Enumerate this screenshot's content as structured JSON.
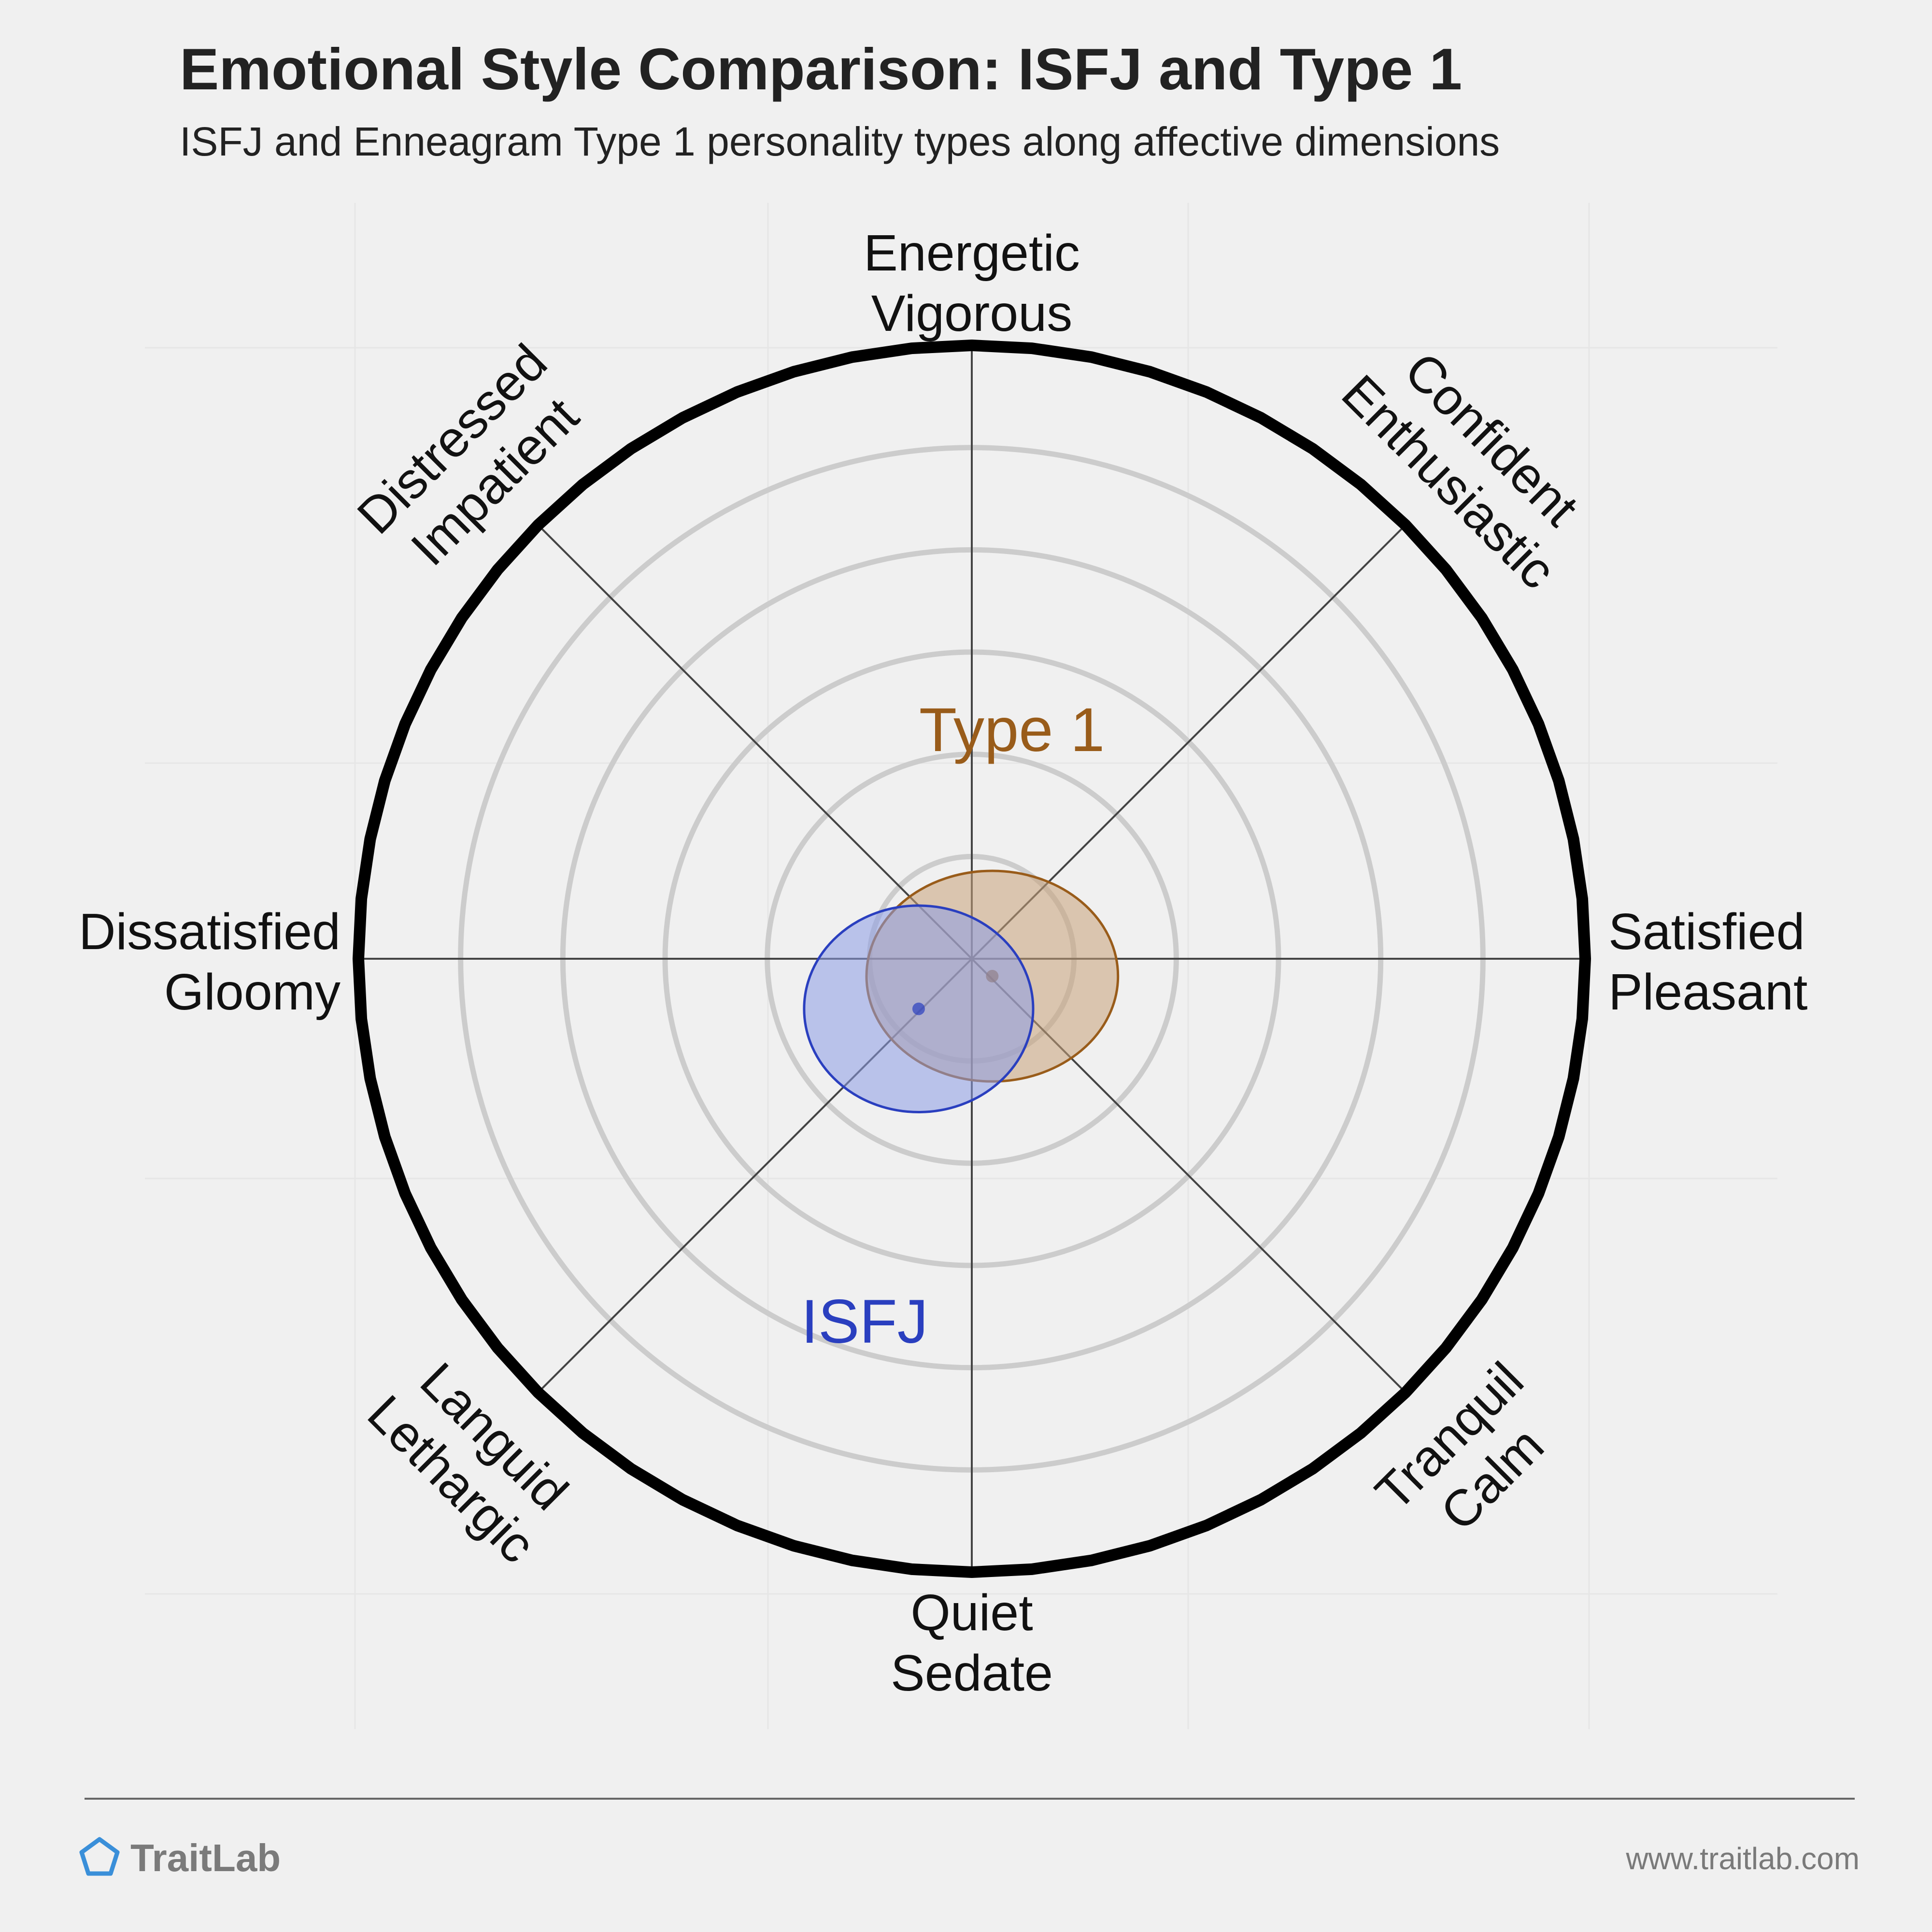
{
  "chart_data": {
    "type": "circumplex",
    "title": "Emotional Style Comparison: ISFJ and Type 1",
    "subtitle": "ISFJ and Enneagram Type 1 personality types along affective dimensions",
    "axes": [
      {
        "id": "energetic",
        "lines": [
          "Energetic",
          "Vigorous"
        ],
        "angle_deg": 90
      },
      {
        "id": "confident",
        "lines": [
          "Confident",
          "Enthusiastic"
        ],
        "angle_deg": 45
      },
      {
        "id": "satisfied",
        "lines": [
          "Satisfied",
          "Pleasant"
        ],
        "angle_deg": 0
      },
      {
        "id": "tranquil",
        "lines": [
          "Tranquil",
          "Calm"
        ],
        "angle_deg": -45
      },
      {
        "id": "quiet",
        "lines": [
          "Quiet",
          "Sedate"
        ],
        "angle_deg": -90
      },
      {
        "id": "languid",
        "lines": [
          "Languid",
          "Lethargic"
        ],
        "angle_deg": -135
      },
      {
        "id": "dissatisfied",
        "lines": [
          "Dissatisfied",
          "Gloomy"
        ],
        "angle_deg": 180
      },
      {
        "id": "distressed",
        "lines": [
          "Distressed",
          "Impatient"
        ],
        "angle_deg": 135
      }
    ],
    "scale": {
      "min": 0,
      "max": 6,
      "rings": [
        1,
        2,
        3,
        4,
        5
      ]
    },
    "series": [
      {
        "name": "Type 1",
        "center": {
          "x": 0.2,
          "y": -0.17
        },
        "radius": {
          "x": 1.23,
          "y": 1.03
        },
        "color": "#995c1a",
        "fill": "#c8a27a"
      },
      {
        "name": "ISFJ",
        "center": {
          "x": -0.52,
          "y": -0.49
        },
        "radius": {
          "x": 1.12,
          "y": 1.01
        },
        "color": "#2a3fbf",
        "fill": "#8c9ce6"
      }
    ]
  },
  "footer": {
    "brand": "TraitLab",
    "url": "www.traitlab.com"
  },
  "colors": {
    "background": "#f0f0f0",
    "ring": "#cccccc",
    "outer_ring": "#000000",
    "axis_line": "#444444",
    "brand_icon": "#3a8fd9"
  }
}
